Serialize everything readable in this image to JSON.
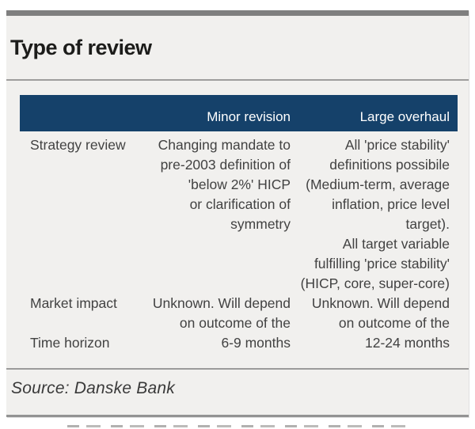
{
  "title": "Type of review",
  "table": {
    "columns": [
      "",
      "Minor revision",
      "Large overhaul"
    ],
    "rows": [
      {
        "label": "Strategy review",
        "minor": "Changing mandate to\npre-2003 definition of\n'below 2%' HICP\nor clarification of\nsymmetry",
        "large": "All 'price stability'\ndefinitions possibile\n(Medium-term, average\ninflation, price level\ntarget).\nAll target variable\nfulfilling 'price stability'\n(HICP, core, super-core)"
      },
      {
        "label": "Market impact",
        "minor": "Unknown. Will depend\non outcome of the",
        "large": "Unknown. Will depend\non outcome of the"
      },
      {
        "label": "Time horizon",
        "minor": "6-9 months",
        "large": "12-24 months"
      }
    ]
  },
  "source": "Source: Danske Bank",
  "colors": {
    "header_bg": "#15416a",
    "header_text": "#ffffff",
    "card_bg": "#f1f0ee",
    "top_bar": "#7f7f7f",
    "body_text": "#424242",
    "rule": "#9b9b9b"
  }
}
